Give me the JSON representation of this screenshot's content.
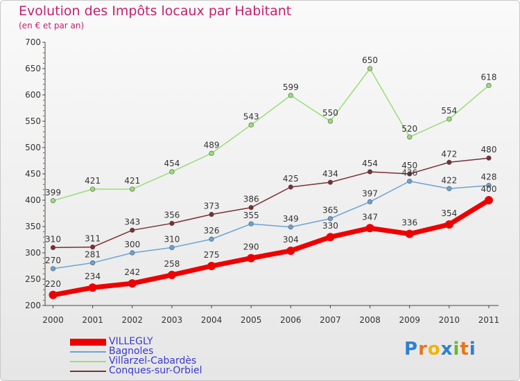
{
  "header": {
    "title": "Evolution des Impôts locaux par Habitant",
    "subtitle": "(en € et par an)"
  },
  "chart_data": {
    "type": "line",
    "title": "Evolution des Impôts locaux par Habitant",
    "subtitle": "(en € et par an)",
    "xlabel": "",
    "ylabel": "",
    "categories": [
      "2000",
      "2001",
      "2002",
      "2003",
      "2004",
      "2005",
      "2006",
      "2007",
      "2008",
      "2009",
      "2010",
      "2011"
    ],
    "ylim": [
      200,
      700
    ],
    "yticks": [
      200,
      250,
      300,
      350,
      400,
      450,
      500,
      550,
      600,
      650,
      700
    ],
    "grid": false,
    "legend_position": "bottom-left",
    "series": [
      {
        "name": "VILLEGLY",
        "color": "#ee0000",
        "values": [
          220,
          234,
          242,
          258,
          275,
          290,
          304,
          330,
          347,
          336,
          354,
          400
        ]
      },
      {
        "name": "Bagnoles",
        "color": "#6aa3d5",
        "values": [
          270,
          281,
          300,
          310,
          326,
          355,
          349,
          365,
          397,
          436,
          422,
          428
        ]
      },
      {
        "name": "Villarzel-Cabardès",
        "color": "#99dd77",
        "values": [
          399,
          421,
          421,
          454,
          489,
          543,
          599,
          550,
          650,
          520,
          554,
          618
        ]
      },
      {
        "name": "Conques-sur-Orbiel",
        "color": "#7a2f32",
        "values": [
          310,
          311,
          343,
          356,
          373,
          386,
          425,
          434,
          454,
          450,
          472,
          480
        ]
      }
    ]
  },
  "brand": {
    "letters": [
      "P",
      "r",
      "o",
      "x",
      "i",
      "t",
      "i"
    ],
    "colors": [
      "#2e7fd1",
      "#e8751a",
      "#f0b400",
      "#2e7fd1",
      "#6ab62e",
      "#e8751a",
      "#2e7fd1"
    ]
  }
}
